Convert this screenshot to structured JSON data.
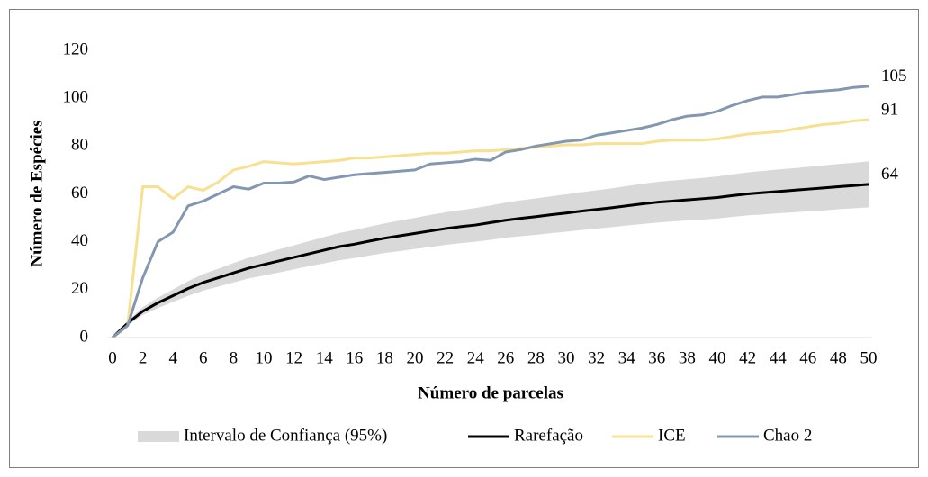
{
  "chart_data": {
    "type": "line",
    "ylabel": "Número de Espécies",
    "xlabel": "Número de parcelas",
    "x": [
      0,
      1,
      2,
      3,
      4,
      5,
      6,
      7,
      8,
      9,
      10,
      11,
      12,
      13,
      14,
      15,
      16,
      17,
      18,
      19,
      20,
      21,
      22,
      23,
      24,
      25,
      26,
      27,
      28,
      29,
      30,
      31,
      32,
      33,
      34,
      35,
      36,
      37,
      38,
      39,
      40,
      41,
      42,
      43,
      44,
      45,
      46,
      47,
      48,
      49,
      50
    ],
    "xlim": [
      0,
      50
    ],
    "xticks": [
      0,
      2,
      4,
      6,
      8,
      10,
      12,
      14,
      16,
      18,
      20,
      22,
      24,
      26,
      28,
      30,
      32,
      34,
      36,
      38,
      40,
      42,
      44,
      46,
      48,
      50
    ],
    "ylim": [
      0,
      120
    ],
    "yticks": [
      0,
      20,
      40,
      60,
      80,
      100,
      120
    ],
    "grid": false,
    "legend": "bottom",
    "series": [
      {
        "name": "Intervalo de Confiança (95%)",
        "type": "band",
        "color": "#d9d9d9",
        "upper": [
          0,
          6.9,
          12.7,
          16.7,
          20.1,
          23.6,
          26.5,
          28.8,
          31.1,
          33.4,
          35.1,
          36.8,
          38.5,
          40.3,
          42,
          43.7,
          44.9,
          46.3,
          47.7,
          48.9,
          50,
          51.2,
          52.3,
          53.2,
          54.1,
          55.2,
          56.4,
          57.3,
          58.1,
          59,
          59.8,
          60.7,
          61.5,
          62.3,
          63.3,
          64.2,
          65,
          65.6,
          66.1,
          66.7,
          67.3,
          68.2,
          69,
          69.6,
          70.2,
          70.7,
          71.3,
          71.9,
          72.5,
          73,
          73.6
        ],
        "lower": [
          0,
          5.1,
          9.4,
          12.3,
          14.9,
          17.4,
          19.6,
          21.3,
          23,
          24.7,
          25.9,
          27.2,
          28.5,
          29.8,
          31,
          32.3,
          33.2,
          34.3,
          35.3,
          36.1,
          37,
          37.8,
          38.7,
          39.4,
          40,
          40.8,
          41.7,
          42.3,
          42.9,
          43.6,
          44.2,
          44.9,
          45.5,
          46.1,
          46.8,
          47.4,
          48,
          48.5,
          48.9,
          49.3,
          49.7,
          50.4,
          51,
          51.4,
          51.9,
          52.3,
          52.7,
          53.1,
          53.6,
          54,
          54.4
        ]
      },
      {
        "name": "Rarefação",
        "color": "#000000",
        "values": [
          0,
          6,
          11,
          14.5,
          17.5,
          20.5,
          23,
          25,
          27,
          29,
          30.5,
          32,
          33.5,
          35,
          36.5,
          38,
          39,
          40.3,
          41.5,
          42.5,
          43.5,
          44.5,
          45.5,
          46.3,
          47,
          48,
          49,
          49.8,
          50.5,
          51.3,
          52,
          52.8,
          53.5,
          54.2,
          55,
          55.8,
          56.5,
          57,
          57.5,
          58,
          58.5,
          59.3,
          60,
          60.5,
          61,
          61.5,
          62,
          62.5,
          63,
          63.5,
          64
        ]
      },
      {
        "name": "ICE",
        "color": "#f7e08f",
        "values": [
          0,
          5,
          63,
          63,
          58,
          63,
          61.5,
          65,
          70,
          71.5,
          73.5,
          73,
          72.5,
          73,
          73.5,
          74,
          75,
          75,
          75.5,
          76,
          76.5,
          77,
          77,
          77.5,
          78,
          78,
          78.5,
          79,
          79.5,
          80,
          80.5,
          80.5,
          81,
          81,
          81,
          81,
          82,
          82.5,
          82.5,
          82.5,
          83,
          84,
          85,
          85.5,
          86,
          87,
          88,
          89,
          89.5,
          90.5,
          91
        ]
      },
      {
        "name": "Chao 2",
        "color": "#8497b0",
        "values": [
          0,
          5,
          25,
          40,
          44,
          55,
          57,
          60,
          63,
          62,
          64.5,
          64.5,
          65,
          67.5,
          66,
          67,
          68,
          68.5,
          69,
          69.5,
          70,
          72.5,
          73,
          73.5,
          74.5,
          74,
          77.5,
          78.5,
          80,
          81,
          82,
          82.5,
          84.5,
          85.5,
          86.5,
          87.5,
          89,
          91,
          92.5,
          93,
          94.5,
          97,
          99,
          100.5,
          100.5,
          101.5,
          102.5,
          103,
          103.5,
          104.5,
          105
        ]
      }
    ]
  }
}
